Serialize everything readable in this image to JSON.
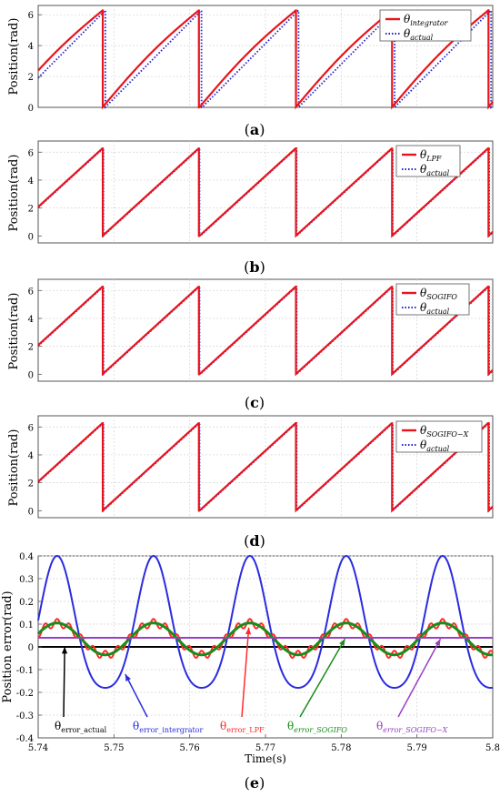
{
  "chart_data": [
    {
      "type": "line",
      "panel_label": "(a)",
      "ylabel": "Position(rad)",
      "ylim": [
        0,
        6.6
      ],
      "xlim": [
        5.74,
        5.8
      ],
      "yticks": [
        "0",
        "2",
        "4",
        "6"
      ],
      "grid": true,
      "legend_position": "top-right",
      "sawtooth": {
        "period": 0.01272,
        "drop_times": [
          5.7485,
          5.7612,
          5.774,
          5.7867,
          5.7994
        ],
        "start_value": 1.9,
        "peak": 6.28,
        "lag": 0.00035
      },
      "series": [
        {
          "name": "θintegrator",
          "color": "#e8141b",
          "style": "solid"
        },
        {
          "name": "θactual",
          "color": "#1f1fd0",
          "style": "dotted"
        }
      ]
    },
    {
      "type": "line",
      "panel_label": "(b)",
      "ylabel": "Position(rad)",
      "ylim": [
        -0.5,
        6.8
      ],
      "xlim": [
        5.74,
        5.8
      ],
      "yticks": [
        "0",
        "2",
        "4",
        "6"
      ],
      "grid": true,
      "legend_position": "top-right",
      "sawtooth": {
        "period": 0.01272,
        "drop_times": [
          5.7485,
          5.7612,
          5.774,
          5.7867,
          5.7994
        ],
        "start_value": 2.0,
        "peak": 6.28,
        "lag": 0.0001
      },
      "series": [
        {
          "name": "θLPF",
          "color": "#e8141b",
          "style": "solid"
        },
        {
          "name": "θactual",
          "color": "#1f1fd0",
          "style": "dotted"
        }
      ]
    },
    {
      "type": "line",
      "panel_label": "(c)",
      "ylabel": "Position(rad)",
      "ylim": [
        -0.5,
        6.8
      ],
      "xlim": [
        5.74,
        5.8
      ],
      "yticks": [
        "0",
        "2",
        "4",
        "6"
      ],
      "grid": true,
      "legend_position": "top-right",
      "sawtooth": {
        "period": 0.01272,
        "drop_times": [
          5.7485,
          5.7612,
          5.774,
          5.7867,
          5.7994
        ],
        "start_value": 2.0,
        "peak": 6.28,
        "lag": 0.0001
      },
      "series": [
        {
          "name": "θSOGIFO",
          "color": "#e8141b",
          "style": "solid"
        },
        {
          "name": "θactual",
          "color": "#1f1fd0",
          "style": "dotted"
        }
      ]
    },
    {
      "type": "line",
      "panel_label": "(d)",
      "ylabel": "Position(rad)",
      "ylim": [
        -0.5,
        6.8
      ],
      "xlim": [
        5.74,
        5.8
      ],
      "yticks": [
        "0",
        "2",
        "4",
        "6"
      ],
      "grid": true,
      "legend_position": "top-right",
      "sawtooth": {
        "period": 0.01272,
        "drop_times": [
          5.7485,
          5.7612,
          5.774,
          5.7867,
          5.7994
        ],
        "start_value": 2.0,
        "peak": 6.28,
        "lag": 0.0001
      },
      "series": [
        {
          "name": "θSOGIFO−X",
          "color": "#e8141b",
          "style": "solid"
        },
        {
          "name": "θactual",
          "color": "#1f1fd0",
          "style": "dotted"
        }
      ]
    },
    {
      "type": "line",
      "panel_label": "(e)",
      "xlabel": "Time(s)",
      "ylabel": "Position error(rad)",
      "xlim": [
        5.74,
        5.8
      ],
      "ylim": [
        -0.4,
        0.4
      ],
      "xticks": [
        "5.74",
        "5.75",
        "5.76",
        "5.77",
        "5.78",
        "5.79",
        "5.8"
      ],
      "yticks": [
        "-0.4",
        "-0.3",
        "-0.2",
        "-0.1",
        "0",
        "0.1",
        "0.2",
        "0.3",
        "0.4"
      ],
      "grid": true,
      "series": [
        {
          "name": "θerror_actual",
          "color": "#000000",
          "constant": 0.0
        },
        {
          "name": "θerror_intergrator",
          "color": "#2b2be0",
          "offset": 0.06,
          "amplitude": 0.29,
          "period": 0.01272,
          "peak_time": 5.7425,
          "harmonic": 0.05
        },
        {
          "name": "θerror_LPF",
          "color": "#ff2a2a",
          "offset": 0.035,
          "amplitude": 0.07,
          "period": 0.01272,
          "peak_time": 5.7425,
          "ripple": 0.018
        },
        {
          "name": "θerror_SOGIFO",
          "color": "#1a8c1a",
          "offset": 0.035,
          "amplitude": 0.07,
          "period": 0.01272,
          "peak_time": 5.7425
        },
        {
          "name": "θerror_SOGIFO−X",
          "color": "#9a3fc4",
          "constant": 0.04
        }
      ],
      "annotations": [
        {
          "text": "θerror_actual",
          "target": [
            5.7435,
            0.0
          ]
        },
        {
          "text": "θerror_intergrator",
          "target": [
            5.7515,
            -0.12
          ]
        },
        {
          "text": "θerror_LPF",
          "target": [
            5.7678,
            0.085
          ]
        },
        {
          "text": "θerror_SOGIFO",
          "target": [
            5.7805,
            0.035
          ]
        },
        {
          "text": "θerror_SOGIFO−X",
          "target": [
            5.7931,
            0.035
          ]
        }
      ]
    }
  ],
  "legends": [
    [
      {
        "main": "θ",
        "sub": "integrator"
      },
      {
        "main": "θ",
        "sub": "actual"
      }
    ],
    [
      {
        "main": "θ",
        "sub": "LPF"
      },
      {
        "main": "θ",
        "sub": "actual"
      }
    ],
    [
      {
        "main": "θ",
        "sub": "SOGIFO"
      },
      {
        "main": "θ",
        "sub": "actual"
      }
    ],
    [
      {
        "main": "θ",
        "sub": "SOGIFO−X"
      },
      {
        "main": "θ",
        "sub": "actual"
      }
    ]
  ],
  "panel_labels": [
    {
      "open": "(",
      "letter": "a",
      "close": ")"
    },
    {
      "open": "(",
      "letter": "b",
      "close": ")"
    },
    {
      "open": "(",
      "letter": "c",
      "close": ")"
    },
    {
      "open": "(",
      "letter": "d",
      "close": ")"
    },
    {
      "open": "(",
      "letter": "e",
      "close": ")"
    }
  ],
  "error_labels": [
    {
      "main": "θ",
      "sub": "error_actual",
      "color": "#000000"
    },
    {
      "main": "θ",
      "sub": "error_intergrator",
      "color": "#2b2be0"
    },
    {
      "main": "θ",
      "sub": "error_LPF",
      "color": "#ff2a2a"
    },
    {
      "main": "θ",
      "sub": "error_SOGIFO",
      "color": "#1a8c1a"
    },
    {
      "main": "θ",
      "sub": "error_SOGIFO−X",
      "color": "#9a3fc4"
    }
  ]
}
